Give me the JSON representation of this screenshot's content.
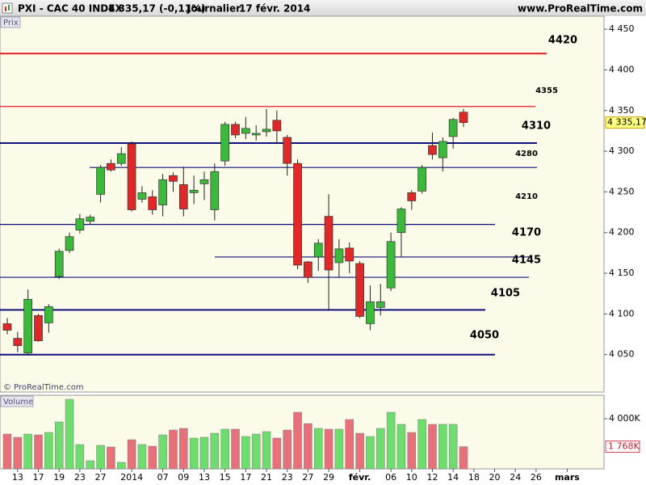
{
  "header": {
    "symbol": "PXI - CAC 40 INDEX",
    "quote": "4 335,17 (-0,11%)",
    "period": "Journalier",
    "date": "17 févr. 2014",
    "site": "www.ProRealTime.com"
  },
  "chart_data": [
    {
      "type": "candlestick",
      "panel_label": "Prix",
      "credit": "© ProRealTime.com",
      "open": [
        4088,
        4070,
        4052,
        4098,
        4089,
        4146,
        4178,
        4203,
        4214,
        4247,
        4285,
        4285,
        4309,
        4241,
        4244,
        4234,
        4270,
        4259,
        4249,
        4260,
        4228,
        4288,
        4333,
        4322,
        4320,
        4324,
        4338,
        4317,
        4285,
        4164,
        4170,
        4220,
        4163,
        4181,
        4162,
        4088,
        4108,
        4132,
        4200,
        4249,
        4251,
        4307,
        4292,
        4318,
        4348
      ],
      "high": [
        4095,
        4078,
        4130,
        4100,
        4112,
        4180,
        4200,
        4223,
        4222,
        4283,
        4290,
        4305,
        4312,
        4257,
        4252,
        4272,
        4274,
        4281,
        4270,
        4275,
        4285,
        4336,
        4336,
        4342,
        4332,
        4352,
        4350,
        4320,
        4290,
        4165,
        4192,
        4247,
        4192,
        4188,
        4165,
        4135,
        4137,
        4200,
        4231,
        4252,
        4283,
        4323,
        4317,
        4341,
        4352
      ],
      "low": [
        4075,
        4053,
        4050,
        4066,
        4077,
        4143,
        4175,
        4199,
        4210,
        4237,
        4275,
        4282,
        4226,
        4237,
        4222,
        4220,
        4250,
        4220,
        4235,
        4240,
        4215,
        4282,
        4316,
        4315,
        4313,
        4318,
        4310,
        4270,
        4155,
        4138,
        4153,
        4104,
        4145,
        4150,
        4095,
        4080,
        4098,
        4128,
        4170,
        4228,
        4248,
        4290,
        4275,
        4303,
        4330
      ],
      "close": [
        4080,
        4061,
        4118,
        4067,
        4109,
        4177,
        4195,
        4217,
        4219,
        4280,
        4277,
        4297,
        4228,
        4249,
        4228,
        4265,
        4263,
        4229,
        4252,
        4265,
        4275,
        4333,
        4320,
        4328,
        4322,
        4327,
        4325,
        4285,
        4160,
        4145,
        4187,
        4154,
        4180,
        4165,
        4097,
        4115,
        4115,
        4189,
        4229,
        4239,
        4280,
        4296,
        4312,
        4339,
        4335.17
      ],
      "up_color": "#3cb83c",
      "down_color": "#e02828",
      "last_value_label": "4 335,17",
      "ylim": [
        4004,
        4466
      ],
      "yticks": [
        {
          "value": 4050,
          "label": "4 050"
        },
        {
          "value": 4100,
          "label": "4 100"
        },
        {
          "value": 4150,
          "label": "4 150"
        },
        {
          "value": 4200,
          "label": "4 200"
        },
        {
          "value": 4250,
          "label": "4 250"
        },
        {
          "value": 4300,
          "label": "4 300"
        },
        {
          "value": 4350,
          "label": "4 350"
        },
        {
          "value": 4400,
          "label": "4 400"
        },
        {
          "value": 4450,
          "label": "4 450"
        }
      ],
      "xlim": [
        -0.7,
        57.55
      ],
      "levels": [
        {
          "value": 4420,
          "color": "#e32020"
        },
        {
          "value": 4355,
          "color": "#e32020"
        },
        {
          "value": 4310,
          "color": "#10107a"
        },
        {
          "value": 4280,
          "color": "#10107a"
        },
        {
          "value": 4210,
          "color": "#10107a"
        },
        {
          "value": 4170,
          "color": "#10107a"
        },
        {
          "value": 4145,
          "color": "#10107a"
        },
        {
          "value": 4105,
          "color": "#10107a"
        },
        {
          "value": 4050,
          "color": "#10107a"
        }
      ]
    },
    {
      "type": "volume",
      "panel_label": "Volume",
      "values": [
        2774,
        2516,
        2774,
        2709,
        2903,
        3741,
        5547,
        1935,
        645,
        1870,
        1741,
        516,
        2322,
        1935,
        1806,
        2709,
        3096,
        3225,
        2451,
        2516,
        2838,
        3161,
        3161,
        2580,
        2774,
        2967,
        2451,
        3096,
        4515,
        3612,
        3225,
        3161,
        3161,
        3935,
        2838,
        2580,
        3225,
        4515,
        3548,
        2903,
        3935,
        3548,
        3548,
        3548,
        1768
      ],
      "up_color": "#6fdc6f",
      "down_color": "#e8707a",
      "last_value_label": "1 768K",
      "ylim": [
        0,
        5870
      ],
      "yticks": [
        {
          "value": 4000,
          "label": "4 000K"
        }
      ],
      "xlim": [
        -0.7,
        57.55
      ],
      "xticks": [
        {
          "value": 1,
          "label": "13"
        },
        {
          "value": 3,
          "label": "17"
        },
        {
          "value": 5,
          "label": "19"
        },
        {
          "value": 7,
          "label": "23"
        },
        {
          "value": 9,
          "label": "27"
        },
        {
          "value": 12,
          "label": "2014"
        },
        {
          "value": 15,
          "label": "07"
        },
        {
          "value": 17,
          "label": "09"
        },
        {
          "value": 19,
          "label": "13"
        },
        {
          "value": 21,
          "label": "15"
        },
        {
          "value": 23,
          "label": "17"
        },
        {
          "value": 25,
          "label": "21"
        },
        {
          "value": 27,
          "label": "23"
        },
        {
          "value": 29,
          "label": "27"
        },
        {
          "value": 31,
          "label": "29"
        },
        {
          "value": 34,
          "label": "févr."
        },
        {
          "value": 37,
          "label": "06"
        },
        {
          "value": 39,
          "label": "10"
        },
        {
          "value": 41,
          "label": "12"
        },
        {
          "value": 43,
          "label": "14"
        },
        {
          "value": 45,
          "label": "18"
        },
        {
          "value": 47,
          "label": "20"
        },
        {
          "value": 49,
          "label": "24"
        },
        {
          "value": 51,
          "label": "26"
        },
        {
          "value": 54,
          "label": "mars"
        }
      ]
    }
  ]
}
